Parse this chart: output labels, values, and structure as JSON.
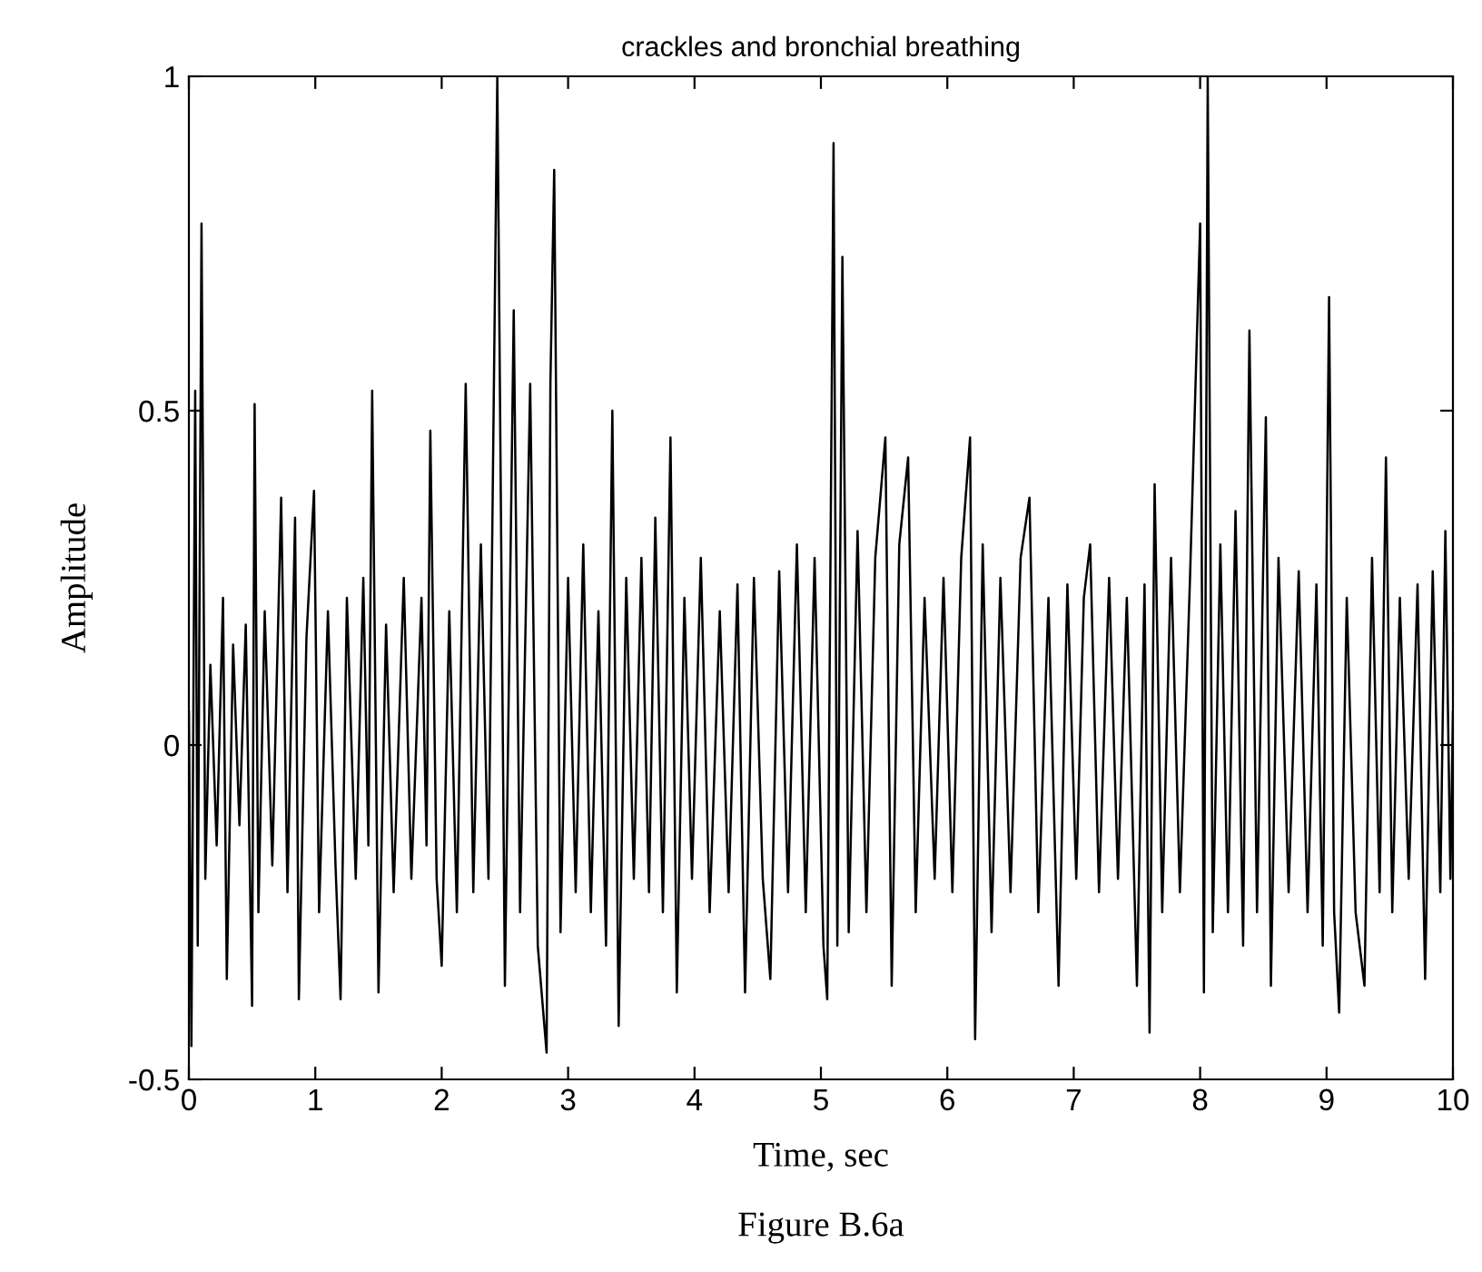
{
  "chart_data": {
    "type": "line",
    "title": "crackles and bronchial breathing",
    "xlabel": "Time, sec",
    "ylabel": "Amplitude",
    "annotations": [
      "Figure B.6a"
    ],
    "color": "#000000",
    "line_style": "solid",
    "marker": "none",
    "xlim": [
      0,
      10
    ],
    "ylim": [
      -0.5,
      1
    ],
    "xticks": [
      0,
      1,
      2,
      3,
      4,
      5,
      6,
      7,
      8,
      9,
      10
    ],
    "yticks": [
      {
        "value": -0.5,
        "label": "-0.5"
      },
      0,
      0.5,
      1
    ],
    "x": [
      0.0,
      0.02,
      0.05,
      0.07,
      0.1,
      0.13,
      0.17,
      0.22,
      0.27,
      0.3,
      0.35,
      0.4,
      0.45,
      0.5,
      0.52,
      0.55,
      0.6,
      0.66,
      0.73,
      0.78,
      0.84,
      0.87,
      0.93,
      0.99,
      1.03,
      1.1,
      1.16,
      1.2,
      1.25,
      1.32,
      1.38,
      1.42,
      1.45,
      1.5,
      1.56,
      1.62,
      1.7,
      1.76,
      1.84,
      1.88,
      1.91,
      1.96,
      2.0,
      2.06,
      2.12,
      2.19,
      2.25,
      2.31,
      2.37,
      2.44,
      2.5,
      2.57,
      2.62,
      2.7,
      2.76,
      2.83,
      2.86,
      2.89,
      2.94,
      3.0,
      3.06,
      3.12,
      3.18,
      3.24,
      3.3,
      3.35,
      3.4,
      3.46,
      3.52,
      3.58,
      3.64,
      3.69,
      3.75,
      3.81,
      3.86,
      3.92,
      3.98,
      4.05,
      4.12,
      4.2,
      4.27,
      4.34,
      4.4,
      4.47,
      4.54,
      4.6,
      4.67,
      4.74,
      4.81,
      4.88,
      4.95,
      5.02,
      5.05,
      5.1,
      5.13,
      5.17,
      5.22,
      5.29,
      5.36,
      5.43,
      5.51,
      5.56,
      5.62,
      5.69,
      5.75,
      5.82,
      5.9,
      5.97,
      6.04,
      6.11,
      6.18,
      6.22,
      6.28,
      6.35,
      6.42,
      6.5,
      6.58,
      6.65,
      6.72,
      6.8,
      6.88,
      6.95,
      7.02,
      7.08,
      7.13,
      7.2,
      7.28,
      7.35,
      7.42,
      7.5,
      7.56,
      7.6,
      7.64,
      7.7,
      7.77,
      7.84,
      7.92,
      8.0,
      8.03,
      8.06,
      8.1,
      8.16,
      8.22,
      8.28,
      8.34,
      8.39,
      8.45,
      8.52,
      8.56,
      8.62,
      8.7,
      8.78,
      8.85,
      8.92,
      8.97,
      9.02,
      9.06,
      9.1,
      9.16,
      9.23,
      9.3,
      9.36,
      9.42,
      9.47,
      9.52,
      9.58,
      9.65,
      9.72,
      9.78,
      9.84,
      9.9,
      9.94,
      9.98,
      10.0
    ],
    "values": [
      0.05,
      -0.45,
      0.53,
      -0.3,
      0.78,
      -0.2,
      0.12,
      -0.15,
      0.22,
      -0.35,
      0.15,
      -0.12,
      0.18,
      -0.39,
      0.51,
      -0.25,
      0.2,
      -0.18,
      0.37,
      -0.22,
      0.34,
      -0.38,
      0.16,
      0.38,
      -0.25,
      0.2,
      -0.18,
      -0.38,
      0.22,
      -0.2,
      0.25,
      -0.15,
      0.53,
      -0.37,
      0.18,
      -0.22,
      0.25,
      -0.2,
      0.22,
      -0.15,
      0.47,
      -0.2,
      -0.33,
      0.2,
      -0.25,
      0.54,
      -0.22,
      0.3,
      -0.2,
      1.0,
      -0.36,
      0.65,
      -0.25,
      0.54,
      -0.3,
      -0.46,
      0.54,
      0.86,
      -0.28,
      0.25,
      -0.22,
      0.3,
      -0.25,
      0.2,
      -0.3,
      0.5,
      -0.42,
      0.25,
      -0.2,
      0.28,
      -0.22,
      0.34,
      -0.25,
      0.46,
      -0.37,
      0.22,
      -0.2,
      0.28,
      -0.25,
      0.2,
      -0.22,
      0.24,
      -0.37,
      0.25,
      -0.2,
      -0.35,
      0.26,
      -0.22,
      0.3,
      -0.25,
      0.28,
      -0.3,
      -0.38,
      0.9,
      -0.3,
      0.73,
      -0.28,
      0.32,
      -0.25,
      0.28,
      0.46,
      -0.36,
      0.3,
      0.43,
      -0.25,
      0.22,
      -0.2,
      0.25,
      -0.22,
      0.28,
      0.46,
      -0.44,
      0.3,
      -0.28,
      0.25,
      -0.22,
      0.28,
      0.37,
      -0.25,
      0.22,
      -0.36,
      0.24,
      -0.2,
      0.22,
      0.3,
      -0.22,
      0.25,
      -0.2,
      0.22,
      -0.36,
      0.24,
      -0.43,
      0.39,
      -0.25,
      0.28,
      -0.22,
      0.25,
      0.78,
      -0.37,
      1.0,
      -0.28,
      0.3,
      -0.25,
      0.35,
      -0.3,
      0.62,
      -0.25,
      0.49,
      -0.36,
      0.28,
      -0.22,
      0.26,
      -0.25,
      0.24,
      -0.3,
      0.67,
      -0.25,
      -0.4,
      0.22,
      -0.25,
      -0.36,
      0.28,
      -0.22,
      0.43,
      -0.25,
      0.22,
      -0.2,
      0.24,
      -0.35,
      0.26,
      -0.22,
      0.32,
      -0.2,
      0.05
    ]
  }
}
